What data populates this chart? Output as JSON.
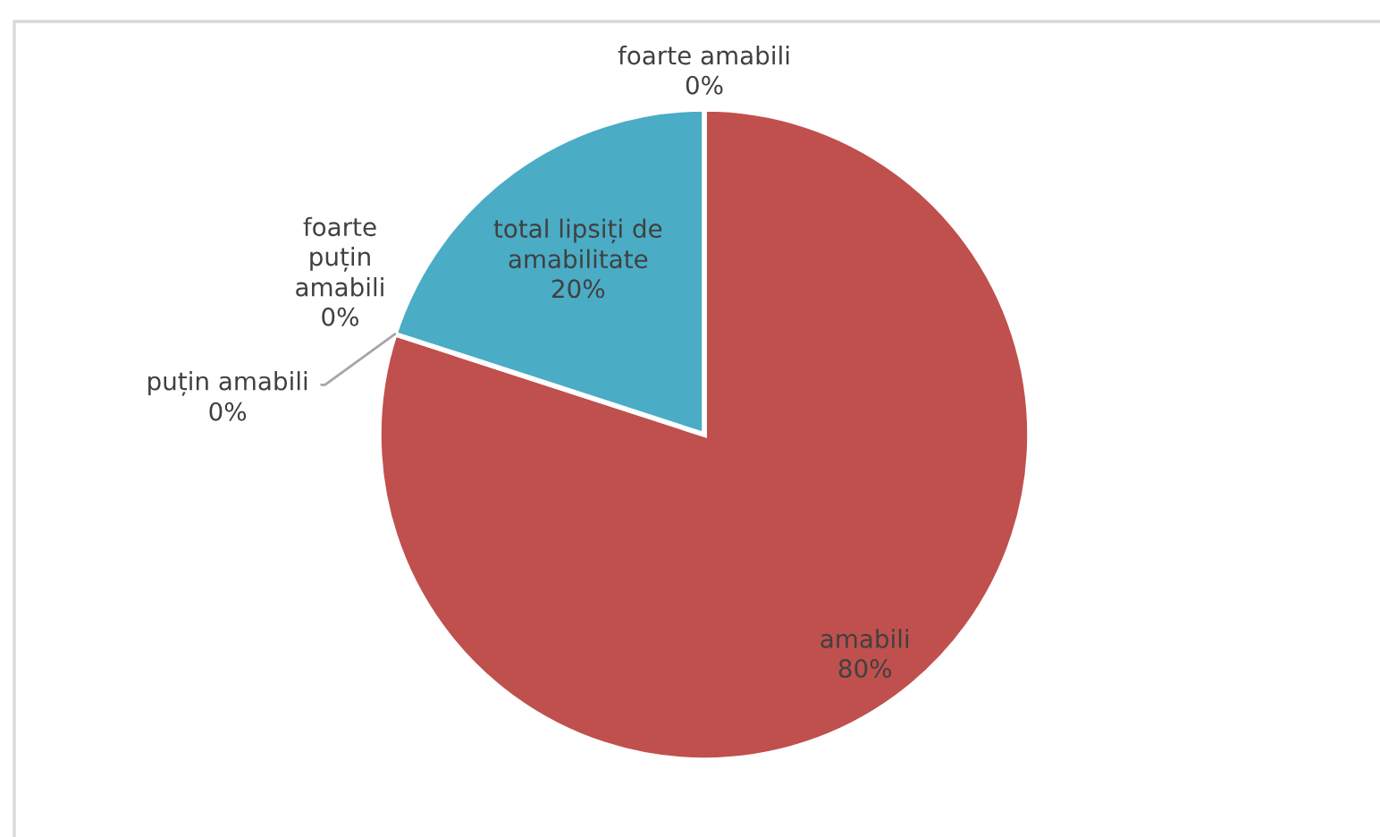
{
  "chart_data": {
    "type": "pie",
    "categories": [
      "foarte amabili",
      "amabili",
      "puțin amabili",
      "foarte\npuțin\namabili",
      "total lipsiți de\namabilitate"
    ],
    "values": [
      0,
      80,
      0,
      0,
      20
    ],
    "value_labels": [
      "0%",
      "80%",
      "0%",
      "0%",
      "20%"
    ],
    "colors": [
      "#4f81bd",
      "#c0504d",
      "#9bbb59",
      "#8064a2",
      "#4bacc6"
    ]
  }
}
